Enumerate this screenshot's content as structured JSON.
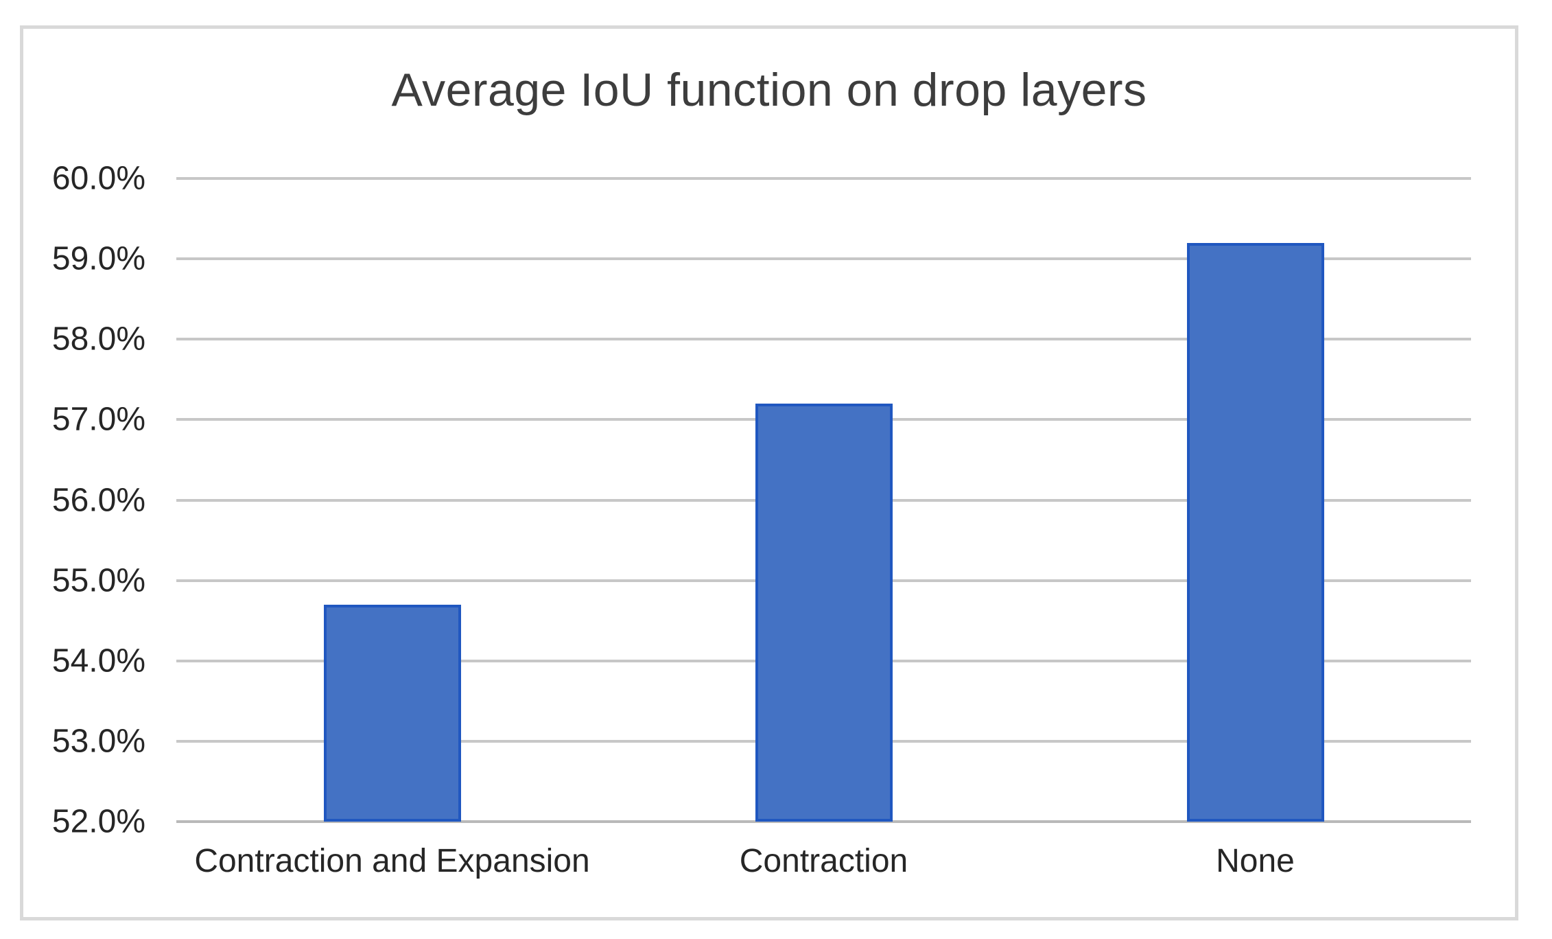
{
  "chart_data": {
    "type": "bar",
    "title": "Average IoU function on drop layers",
    "categories": [
      "Contraction and Expansion",
      "Contraction",
      "None"
    ],
    "values": [
      54.7,
      57.2,
      59.2
    ],
    "value_unit": "%",
    "xlabel": "",
    "ylabel": "",
    "ylim": [
      52.0,
      60.0
    ],
    "ytick_step": 1.0,
    "yticks": [
      {
        "value": 60.0,
        "label": "60.0%"
      },
      {
        "value": 59.0,
        "label": "59.0%"
      },
      {
        "value": 58.0,
        "label": "58.0%"
      },
      {
        "value": 57.0,
        "label": "57.0%"
      },
      {
        "value": 56.0,
        "label": "56.0%"
      },
      {
        "value": 55.0,
        "label": "55.0%"
      },
      {
        "value": 54.0,
        "label": "54.0%"
      },
      {
        "value": 53.0,
        "label": "53.0%"
      },
      {
        "value": 52.0,
        "label": "52.0%"
      }
    ],
    "grid": true,
    "legend": false,
    "colors": {
      "bar_fill": "#4472c4",
      "bar_border": "#2057c0",
      "gridline": "#c7c7c7",
      "baseline": "#b9b9b9",
      "frame_border": "#d9d9d9",
      "title_text": "#3d3d3d",
      "tick_text": "#262626"
    }
  }
}
